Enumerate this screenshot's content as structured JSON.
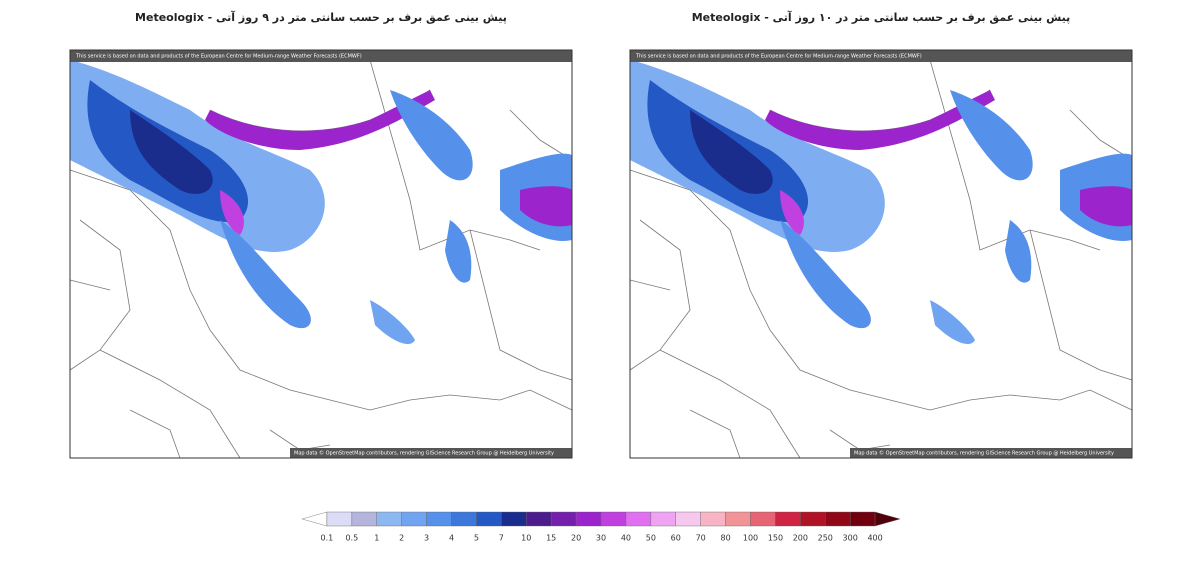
{
  "maps": [
    {
      "title": "پیش بینی عمق برف بر حسب سانتی متر در ۹ روز آتی - Meteologix",
      "attribution_top": "This service is based on data and products of the European Centre for Medium-range Weather Forecasts (ECMWF)",
      "attribution_bottom": "Map data © OpenStreetMap contributors, rendering GIScience Research Group @ Heidelberg University"
    },
    {
      "title": "پیش بینی عمق برف بر حسب سانتی متر در ۱۰ روز آتی - Meteologix",
      "attribution_top": "This service is based on data and products of the European Centre for Medium-range Weather Forecasts (ECMWF)",
      "attribution_bottom": "Map data © OpenStreetMap contributors, rendering GIScience Research Group @ Heidelberg University"
    }
  ],
  "colorbar": {
    "labels": [
      0.1,
      0.5,
      1,
      2,
      3,
      4,
      5,
      7,
      10,
      15,
      20,
      30,
      40,
      50,
      60,
      70,
      80,
      100,
      150,
      200,
      250,
      300,
      400
    ],
    "colors": [
      "#ffffff",
      "#dcdcf6",
      "#b4b4dc",
      "#8cb8f2",
      "#70a4f0",
      "#5590ea",
      "#3c78dc",
      "#2458c4",
      "#1a2c8c",
      "#4c1c8c",
      "#7420ac",
      "#9c24cc",
      "#c040e0",
      "#e070f0",
      "#eea4f2",
      "#f6c8ee",
      "#f6b4c4",
      "#f09498",
      "#e66474",
      "#d02444",
      "#b01424",
      "#900818",
      "#700010",
      "#500008"
    ]
  }
}
